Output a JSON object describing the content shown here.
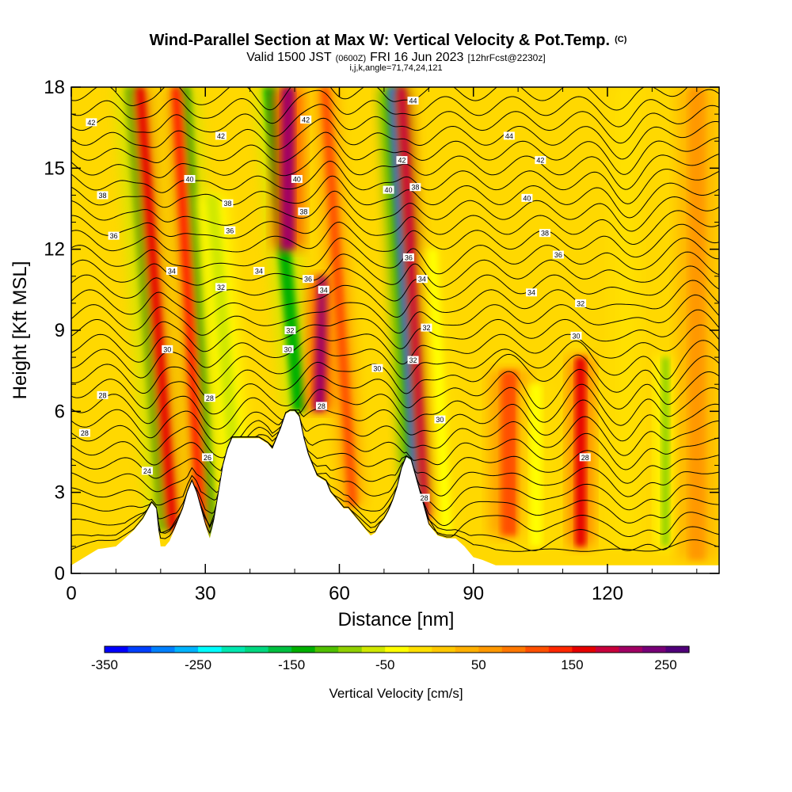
{
  "chart_data": {
    "type": "heatmap",
    "title": "Wind-Parallel Section at Max W: Vertical Velocity & Pot.Temp.",
    "copyright_mark": "(C)",
    "subtitle": {
      "valid": "Valid 1500 JST",
      "utc": "(0600Z)",
      "date": "FRI 16 Jun 2023",
      "forecast": "[12hrFcst@2230z]"
    },
    "section_info": "i,j,k,angle=71,74,24,121",
    "xlabel": "Distance [nm]",
    "ylabel": "Height [Kft MSL]",
    "xlim": [
      0,
      145
    ],
    "ylim": [
      0,
      18
    ],
    "x_ticks": [
      "0",
      "30",
      "60",
      "90",
      "120"
    ],
    "y_ticks": [
      "0",
      "3",
      "6",
      "9",
      "12",
      "15",
      "18"
    ],
    "x_tick_values": [
      0,
      30,
      60,
      90,
      120
    ],
    "y_tick_values": [
      0,
      3,
      6,
      9,
      12,
      15,
      18
    ],
    "colorbar": {
      "label": "Vertical Velocity [cm/s]",
      "tick_labels": [
        "-350",
        "-250",
        "-150",
        "-50",
        "50",
        "150",
        "250"
      ],
      "tick_values": [
        -350,
        -250,
        -150,
        -50,
        50,
        150,
        250
      ],
      "min": -350,
      "step": 25,
      "colors": [
        "#0000ff",
        "#0040ff",
        "#0080ff",
        "#00b4ff",
        "#00ffff",
        "#00e8b0",
        "#00d880",
        "#00c040",
        "#00b000",
        "#50c000",
        "#90d000",
        "#d0e800",
        "#ffff00",
        "#ffe000",
        "#ffc800",
        "#ffb000",
        "#ff9800",
        "#ff7800",
        "#ff5000",
        "#ff2800",
        "#e60000",
        "#c8003c",
        "#a00064",
        "#780078",
        "#50007a"
      ]
    },
    "terrain_kft": {
      "x": [
        0,
        3,
        6,
        10,
        12,
        14,
        16,
        17,
        18,
        19,
        19.5,
        20,
        21,
        22,
        23,
        24,
        25,
        26,
        27,
        28,
        29,
        30,
        31,
        32,
        33,
        34,
        35,
        36,
        38,
        40,
        42,
        44,
        45,
        46,
        47,
        48,
        49,
        50,
        51,
        52,
        53,
        54,
        55,
        56,
        57,
        58,
        59,
        60,
        61,
        62,
        63,
        64,
        65,
        66,
        67,
        68,
        69,
        70,
        71,
        72,
        73,
        74,
        75,
        76,
        77,
        78,
        79,
        80,
        81,
        82,
        84,
        86,
        88,
        90,
        92,
        95,
        100,
        145
      ],
      "z": [
        0.3,
        0.6,
        0.9,
        1.0,
        1.3,
        1.6,
        2.0,
        2.3,
        2.6,
        2.4,
        1.6,
        1.0,
        1.0,
        1.2,
        1.6,
        2.0,
        2.4,
        3.0,
        3.4,
        3.0,
        2.4,
        1.8,
        1.3,
        2.0,
        3.0,
        4.0,
        4.6,
        5.0,
        5.0,
        5.0,
        5.0,
        4.8,
        4.6,
        5.0,
        5.4,
        5.9,
        6.0,
        6.0,
        5.8,
        5.0,
        4.4,
        4.0,
        3.6,
        3.5,
        3.4,
        3.0,
        2.8,
        2.6,
        2.4,
        2.4,
        2.2,
        2.0,
        1.8,
        1.6,
        1.4,
        1.5,
        1.8,
        2.0,
        2.3,
        2.7,
        3.2,
        3.9,
        4.3,
        4.2,
        3.6,
        3.0,
        2.4,
        1.8,
        1.6,
        1.4,
        1.3,
        1.3,
        1.0,
        0.6,
        0.5,
        0.3,
        0.3,
        0.3
      ]
    },
    "vertical_velocity_cells": [
      {
        "x": 21,
        "z0": 1.6,
        "z1": 18,
        "tilt": 0.45,
        "w": 3.5,
        "value": -120
      },
      {
        "x": 22.8,
        "z0": 1.6,
        "z1": 18,
        "tilt": 0.45,
        "w": 2.0,
        "value": 150
      },
      {
        "x": 31,
        "z0": 1.4,
        "z1": 18,
        "tilt": 0.35,
        "w": 3.0,
        "value": -130
      },
      {
        "x": 29.2,
        "z0": 1.4,
        "z1": 18,
        "tilt": 0.35,
        "w": 2.2,
        "value": 130
      },
      {
        "x": 37,
        "z0": 3.0,
        "z1": 14,
        "tilt": 0.5,
        "w": 3.0,
        "value": -60
      },
      {
        "x": 51,
        "z0": 6.0,
        "z1": 18,
        "tilt": 0.55,
        "w": 3.2,
        "value": -150
      },
      {
        "x": 48.5,
        "z0": 12,
        "z1": 18,
        "tilt": 0.0,
        "w": 3.2,
        "value": 200
      },
      {
        "x": 55.5,
        "z0": 6.0,
        "z1": 11,
        "tilt": -0.2,
        "w": 2.8,
        "value": 220
      },
      {
        "x": 63,
        "z0": 2.5,
        "z1": 18,
        "tilt": 0.4,
        "w": 2.2,
        "value": 100
      },
      {
        "x": 77.5,
        "z0": 2.4,
        "z1": 18,
        "tilt": 0.35,
        "w": 2.6,
        "value": -300
      },
      {
        "x": 79.5,
        "z0": 2.0,
        "z1": 18,
        "tilt": 0.35,
        "w": 1.8,
        "value": 190
      },
      {
        "x": 84,
        "z0": 1.5,
        "z1": 12,
        "tilt": 0.3,
        "w": 2.5,
        "value": -40
      },
      {
        "x": 98,
        "z0": 1.4,
        "z1": 7.5,
        "tilt": 0.0,
        "w": 4.0,
        "value": 110
      },
      {
        "x": 104,
        "z0": 1.0,
        "z1": 7.0,
        "tilt": 0.0,
        "w": 3.0,
        "value": -30
      },
      {
        "x": 114,
        "z0": 1.0,
        "z1": 8.0,
        "tilt": 0.0,
        "w": 2.6,
        "value": 150
      },
      {
        "x": 124,
        "z0": 1.0,
        "z1": 18,
        "tilt": 0.0,
        "w": 3.0,
        "value": -20
      },
      {
        "x": 133,
        "z0": 1.0,
        "z1": 8.0,
        "tilt": 0.0,
        "w": 2.0,
        "value": -80
      },
      {
        "x": 140,
        "z0": 0.5,
        "z1": 18,
        "tilt": 0.0,
        "w": 4.0,
        "value": 70
      }
    ],
    "theta_contours": [
      {
        "level": "24",
        "z": 3.8,
        "label_x": 17
      },
      {
        "level": "26",
        "z": 4.3,
        "label_x": 30.5
      },
      {
        "level": "28",
        "z": 5.2,
        "label_x": 3
      },
      {
        "level": "28",
        "z": 6.6,
        "label_x": 7
      },
      {
        "level": "28",
        "z": 6.2,
        "label_x": 56
      },
      {
        "level": "28",
        "z": 4.3,
        "label_x": 115
      },
      {
        "level": "28",
        "z": 2.8,
        "label_x": 79
      },
      {
        "level": "28",
        "z": 6.5,
        "label_x": 31
      },
      {
        "level": "30",
        "z": 8.3,
        "label_x": 21.5
      },
      {
        "level": "30",
        "z": 5.7,
        "label_x": 82.5
      },
      {
        "level": "30",
        "z": 8.8,
        "label_x": 113
      },
      {
        "level": "30",
        "z": 8.3,
        "label_x": 48.5
      },
      {
        "level": "30",
        "z": 7.6,
        "label_x": 68.5
      },
      {
        "level": "32",
        "z": 10.6,
        "label_x": 33.5
      },
      {
        "level": "32",
        "z": 9.0,
        "label_x": 49
      },
      {
        "level": "32",
        "z": 7.9,
        "label_x": 76.5
      },
      {
        "level": "32",
        "z": 9.1,
        "label_x": 79.5
      },
      {
        "level": "32",
        "z": 10.0,
        "label_x": 114
      },
      {
        "level": "34",
        "z": 11.2,
        "label_x": 22.5
      },
      {
        "level": "34",
        "z": 11.2,
        "label_x": 42
      },
      {
        "level": "34",
        "z": 10.5,
        "label_x": 56.5
      },
      {
        "level": "34",
        "z": 10.9,
        "label_x": 78.5
      },
      {
        "level": "34",
        "z": 10.4,
        "label_x": 103
      },
      {
        "level": "36",
        "z": 12.5,
        "label_x": 9.5
      },
      {
        "level": "36",
        "z": 12.7,
        "label_x": 35.5
      },
      {
        "level": "36",
        "z": 10.9,
        "label_x": 53
      },
      {
        "level": "36",
        "z": 11.7,
        "label_x": 75.5
      },
      {
        "level": "36",
        "z": 11.8,
        "label_x": 109
      },
      {
        "level": "38",
        "z": 14.0,
        "label_x": 7
      },
      {
        "level": "38",
        "z": 13.7,
        "label_x": 35
      },
      {
        "level": "38",
        "z": 13.4,
        "label_x": 52
      },
      {
        "level": "38",
        "z": 14.3,
        "label_x": 77
      },
      {
        "level": "38",
        "z": 12.6,
        "label_x": 106
      },
      {
        "level": "40",
        "z": 14.6,
        "label_x": 26.5
      },
      {
        "level": "40",
        "z": 14.6,
        "label_x": 50.5
      },
      {
        "level": "40",
        "z": 14.2,
        "label_x": 71
      },
      {
        "level": "40",
        "z": 13.9,
        "label_x": 102
      },
      {
        "level": "42",
        "z": 16.7,
        "label_x": 4.5
      },
      {
        "level": "42",
        "z": 16.2,
        "label_x": 33.5
      },
      {
        "level": "42",
        "z": 16.8,
        "label_x": 52.5
      },
      {
        "level": "42",
        "z": 15.3,
        "label_x": 74
      },
      {
        "level": "42",
        "z": 15.3,
        "label_x": 105
      },
      {
        "level": "44",
        "z": 17.5,
        "label_x": 76.5
      },
      {
        "level": "44",
        "z": 16.2,
        "label_x": 98
      }
    ]
  }
}
